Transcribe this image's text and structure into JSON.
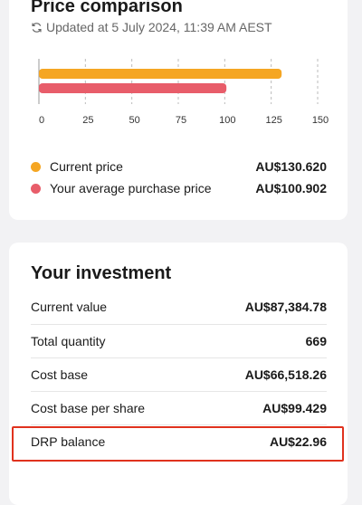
{
  "price_card": {
    "title": "Price comparison",
    "updated": "Updated at 5 July 2024, 11:39 AM AEST"
  },
  "chart_data": {
    "type": "bar",
    "orientation": "horizontal",
    "categories": [
      null
    ],
    "series": [
      {
        "name": "Current price",
        "color": "#f5a623",
        "values": [
          130.62
        ],
        "value_labels": [
          "AU$130.620"
        ]
      },
      {
        "name": "Your average purchase price",
        "color": "#e85d6a",
        "values": [
          100.902
        ],
        "value_labels": [
          "AU$100.902"
        ]
      }
    ],
    "xlim": [
      0,
      150
    ],
    "xticks": [
      0,
      25,
      50,
      75,
      100,
      125,
      150
    ],
    "grid": true
  },
  "investment": {
    "title": "Your investment",
    "rows": [
      [
        "Current value",
        "AU$87,384.78"
      ],
      [
        "Total quantity",
        "669"
      ],
      [
        "Cost base",
        "AU$66,518.26"
      ],
      [
        "Cost base per share",
        "AU$99.429"
      ],
      [
        "DRP balance",
        "AU$22.96"
      ]
    ]
  }
}
